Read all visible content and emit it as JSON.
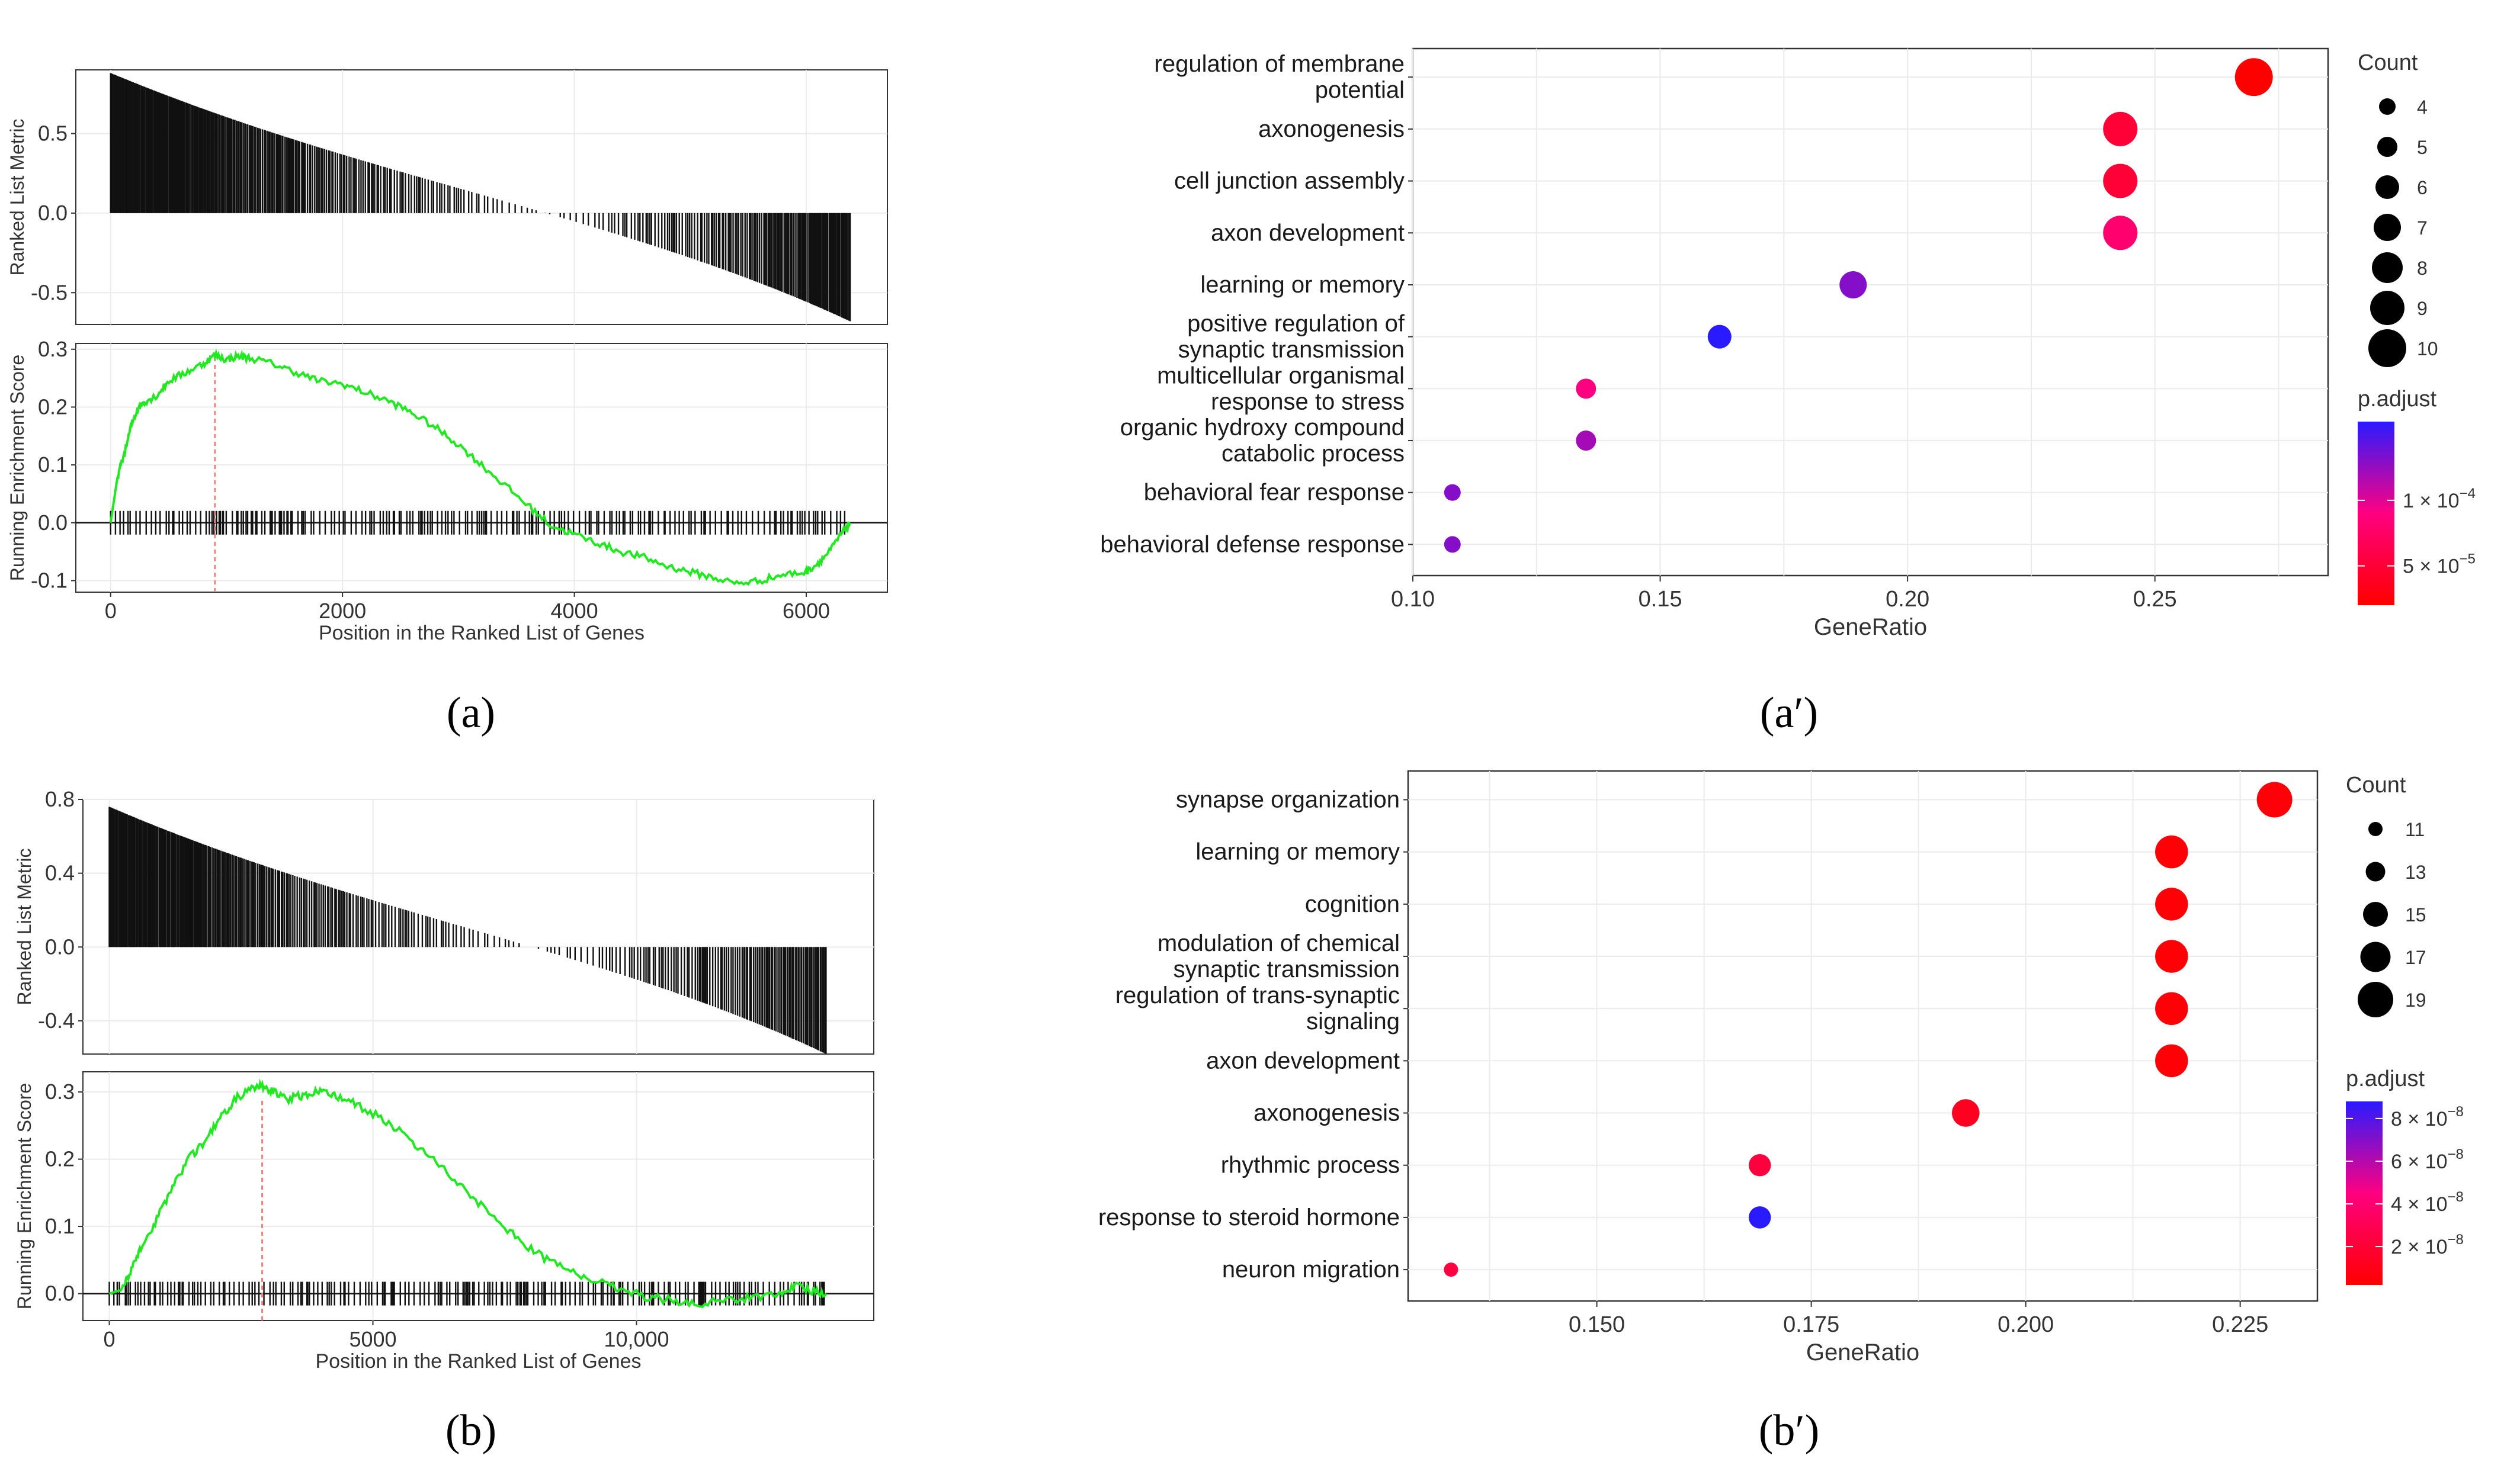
{
  "panel_labels": {
    "a": "(a)",
    "a_prime": "(a′)",
    "b": "(b)",
    "b_prime": "(b′)"
  },
  "chart_data": [
    {
      "id": "a",
      "type": "gsea",
      "top": {
        "ylabel": "Ranked List Metric",
        "ylim": [
          -0.7,
          0.9
        ],
        "yticks": [
          -0.5,
          0.0,
          0.5
        ],
        "ytick_labels": [
          "-0.5",
          "0.0",
          "0.5"
        ],
        "metric_start": 0.88,
        "metric_end": -0.68
      },
      "bottom": {
        "ylabel": "Running Enrichment Score",
        "xlabel": "Position in the Ranked List of Genes",
        "xlim": [
          -300,
          6700
        ],
        "ylim": [
          -0.12,
          0.31
        ],
        "xticks": [
          0,
          2000,
          4000,
          6000
        ],
        "xtick_labels": [
          "0",
          "2000",
          "4000",
          "6000"
        ],
        "yticks": [
          -0.1,
          0.0,
          0.1,
          0.2,
          0.3
        ],
        "ytick_labels": [
          "-0.1",
          "0.0",
          "0.1",
          "0.2",
          "0.3"
        ],
        "n_genes": 6380,
        "peak_position": 900,
        "running_score": [
          [
            0,
            0
          ],
          [
            60,
            0.08
          ],
          [
            120,
            0.12
          ],
          [
            180,
            0.17
          ],
          [
            240,
            0.2
          ],
          [
            300,
            0.21
          ],
          [
            400,
            0.22
          ],
          [
            500,
            0.245
          ],
          [
            650,
            0.26
          ],
          [
            800,
            0.275
          ],
          [
            900,
            0.29
          ],
          [
            1000,
            0.282
          ],
          [
            1100,
            0.288
          ],
          [
            1200,
            0.285
          ],
          [
            1400,
            0.275
          ],
          [
            1600,
            0.26
          ],
          [
            1800,
            0.245
          ],
          [
            2000,
            0.24
          ],
          [
            2200,
            0.225
          ],
          [
            2400,
            0.21
          ],
          [
            2600,
            0.19
          ],
          [
            2800,
            0.165
          ],
          [
            3000,
            0.135
          ],
          [
            3200,
            0.1
          ],
          [
            3400,
            0.065
          ],
          [
            3600,
            0.03
          ],
          [
            3800,
            -0.005
          ],
          [
            4000,
            -0.02
          ],
          [
            4200,
            -0.035
          ],
          [
            4400,
            -0.05
          ],
          [
            4600,
            -0.06
          ],
          [
            4800,
            -0.075
          ],
          [
            5000,
            -0.085
          ],
          [
            5200,
            -0.095
          ],
          [
            5400,
            -0.105
          ],
          [
            5600,
            -0.1
          ],
          [
            5800,
            -0.09
          ],
          [
            6000,
            -0.085
          ],
          [
            6100,
            -0.07
          ],
          [
            6200,
            -0.05
          ],
          [
            6300,
            -0.02
          ],
          [
            6380,
            0
          ]
        ]
      }
    },
    {
      "id": "a_prime",
      "type": "scatter",
      "xlabel": "GeneRatio",
      "xlim": [
        0.1,
        0.285
      ],
      "xticks": [
        0.1,
        0.15,
        0.2,
        0.25
      ],
      "xtick_labels": [
        "0.10",
        "0.15",
        "0.20",
        "0.25"
      ],
      "categories": [
        [
          "regulation of membrane",
          "potential"
        ],
        [
          "axonogenesis"
        ],
        [
          "cell junction assembly"
        ],
        [
          "axon development"
        ],
        [
          "learning or memory"
        ],
        [
          "positive regulation of",
          "synaptic transmission"
        ],
        [
          "multicellular organismal",
          "response to stress"
        ],
        [
          "organic hydroxy compound",
          "catabolic process"
        ],
        [
          "behavioral fear response"
        ],
        [
          "behavioral defense response"
        ]
      ],
      "points": [
        {
          "gene_ratio": 0.27,
          "count": 10,
          "p_adjust": 2e-05
        },
        {
          "gene_ratio": 0.243,
          "count": 9,
          "p_adjust": 5e-05
        },
        {
          "gene_ratio": 0.243,
          "count": 9,
          "p_adjust": 5e-05
        },
        {
          "gene_ratio": 0.243,
          "count": 9,
          "p_adjust": 8e-05
        },
        {
          "gene_ratio": 0.189,
          "count": 7,
          "p_adjust": 0.00013
        },
        {
          "gene_ratio": 0.162,
          "count": 6,
          "p_adjust": 0.00016
        },
        {
          "gene_ratio": 0.135,
          "count": 5,
          "p_adjust": 9e-05
        },
        {
          "gene_ratio": 0.135,
          "count": 5,
          "p_adjust": 0.00012
        },
        {
          "gene_ratio": 0.108,
          "count": 4,
          "p_adjust": 0.00013
        },
        {
          "gene_ratio": 0.108,
          "count": 4,
          "p_adjust": 0.00013
        }
      ],
      "size_legend": {
        "title": "Count",
        "values": [
          4,
          5,
          6,
          7,
          8,
          9,
          10
        ],
        "labels": [
          "4",
          "5",
          "6",
          "7",
          "8",
          "9",
          "10"
        ]
      },
      "color_legend": {
        "title": "p.adjust",
        "min": 2e-05,
        "max": 0.00016,
        "ticks": [
          0.0001,
          5e-05
        ],
        "tick_labels": [
          [
            "1 × 10",
            "−4"
          ],
          [
            "5 × 10",
            "−5"
          ]
        ],
        "low_color": "#ff0000",
        "mid_color": "#ff0080",
        "high_color": "#2a1aff"
      }
    },
    {
      "id": "b",
      "type": "gsea",
      "top": {
        "ylabel": "Ranked List Metric",
        "ylim": [
          -0.58,
          0.8
        ],
        "yticks": [
          -0.4,
          0.0,
          0.4,
          0.8
        ],
        "ytick_labels": [
          "-0.4",
          "0.0",
          "0.4",
          "0.8"
        ],
        "metric_start": 0.76,
        "metric_end": -0.58
      },
      "bottom": {
        "ylabel": "Running Enrichment Score",
        "xlabel": "Position in the Ranked List of Genes",
        "xlim": [
          -500,
          14500
        ],
        "ylim": [
          -0.04,
          0.33
        ],
        "xticks": [
          0,
          5000,
          10000
        ],
        "xtick_labels": [
          "0",
          "5000",
          "10,000"
        ],
        "yticks": [
          0.0,
          0.1,
          0.2,
          0.3
        ],
        "ytick_labels": [
          "0.0",
          "0.1",
          "0.2",
          "0.3"
        ],
        "n_genes": 13600,
        "peak_position": 2900,
        "running_score": [
          [
            0,
            0
          ],
          [
            200,
            0.005
          ],
          [
            400,
            0.03
          ],
          [
            600,
            0.07
          ],
          [
            900,
            0.11
          ],
          [
            1200,
            0.16
          ],
          [
            1500,
            0.2
          ],
          [
            1800,
            0.225
          ],
          [
            2100,
            0.26
          ],
          [
            2400,
            0.29
          ],
          [
            2700,
            0.305
          ],
          [
            2900,
            0.308
          ],
          [
            3100,
            0.3
          ],
          [
            3400,
            0.29
          ],
          [
            3700,
            0.295
          ],
          [
            4000,
            0.302
          ],
          [
            4300,
            0.295
          ],
          [
            4700,
            0.28
          ],
          [
            5200,
            0.26
          ],
          [
            5700,
            0.23
          ],
          [
            6200,
            0.195
          ],
          [
            6700,
            0.16
          ],
          [
            7200,
            0.12
          ],
          [
            7700,
            0.085
          ],
          [
            8200,
            0.055
          ],
          [
            8700,
            0.035
          ],
          [
            9200,
            0.02
          ],
          [
            9700,
            0.008
          ],
          [
            10200,
            -0.005
          ],
          [
            10700,
            -0.01
          ],
          [
            11200,
            -0.015
          ],
          [
            11700,
            -0.01
          ],
          [
            12200,
            -0.005
          ],
          [
            12700,
            0.0
          ],
          [
            13000,
            0.012
          ],
          [
            13300,
            0.005
          ],
          [
            13600,
            0.0
          ]
        ]
      }
    },
    {
      "id": "b_prime",
      "type": "scatter",
      "xlabel": "GeneRatio",
      "xlim": [
        0.128,
        0.234
      ],
      "xticks": [
        0.15,
        0.175,
        0.2,
        0.225
      ],
      "xtick_labels": [
        "0.150",
        "0.175",
        "0.200",
        "0.225"
      ],
      "categories": [
        [
          "synapse organization"
        ],
        [
          "learning or memory"
        ],
        [
          "cognition"
        ],
        [
          "modulation of chemical",
          "synaptic transmission"
        ],
        [
          "regulation of trans-synaptic",
          "signaling"
        ],
        [
          "axon development"
        ],
        [
          "axonogenesis"
        ],
        [
          "rhythmic process"
        ],
        [
          "response to steroid hormone"
        ],
        [
          "neuron migration"
        ]
      ],
      "points": [
        {
          "gene_ratio": 0.229,
          "count": 19,
          "p_adjust": 5e-09
        },
        {
          "gene_ratio": 0.217,
          "count": 18,
          "p_adjust": 4e-09
        },
        {
          "gene_ratio": 0.217,
          "count": 18,
          "p_adjust": 4e-09
        },
        {
          "gene_ratio": 0.217,
          "count": 18,
          "p_adjust": 4e-09
        },
        {
          "gene_ratio": 0.217,
          "count": 18,
          "p_adjust": 4e-09
        },
        {
          "gene_ratio": 0.217,
          "count": 18,
          "p_adjust": 4e-09
        },
        {
          "gene_ratio": 0.193,
          "count": 16,
          "p_adjust": 1.3e-08
        },
        {
          "gene_ratio": 0.169,
          "count": 14,
          "p_adjust": 2.3e-08
        },
        {
          "gene_ratio": 0.169,
          "count": 14,
          "p_adjust": 8.8e-08
        },
        {
          "gene_ratio": 0.133,
          "count": 11,
          "p_adjust": 2.4e-08
        }
      ],
      "size_legend": {
        "title": "Count",
        "values": [
          11,
          13,
          15,
          17,
          19
        ],
        "labels": [
          "11",
          "13",
          "15",
          "17",
          "19"
        ]
      },
      "color_legend": {
        "title": "p.adjust",
        "min": 2e-09,
        "max": 8.8e-08,
        "ticks": [
          8e-08,
          6e-08,
          4e-08,
          2e-08
        ],
        "tick_labels": [
          [
            "8 × 10",
            "−8"
          ],
          [
            "6 × 10",
            "−8"
          ],
          [
            "4 × 10",
            "−8"
          ],
          [
            "2 × 10",
            "−8"
          ]
        ],
        "low_color": "#ff0000",
        "mid_color": "#ff0080",
        "high_color": "#2a1aff"
      }
    }
  ]
}
